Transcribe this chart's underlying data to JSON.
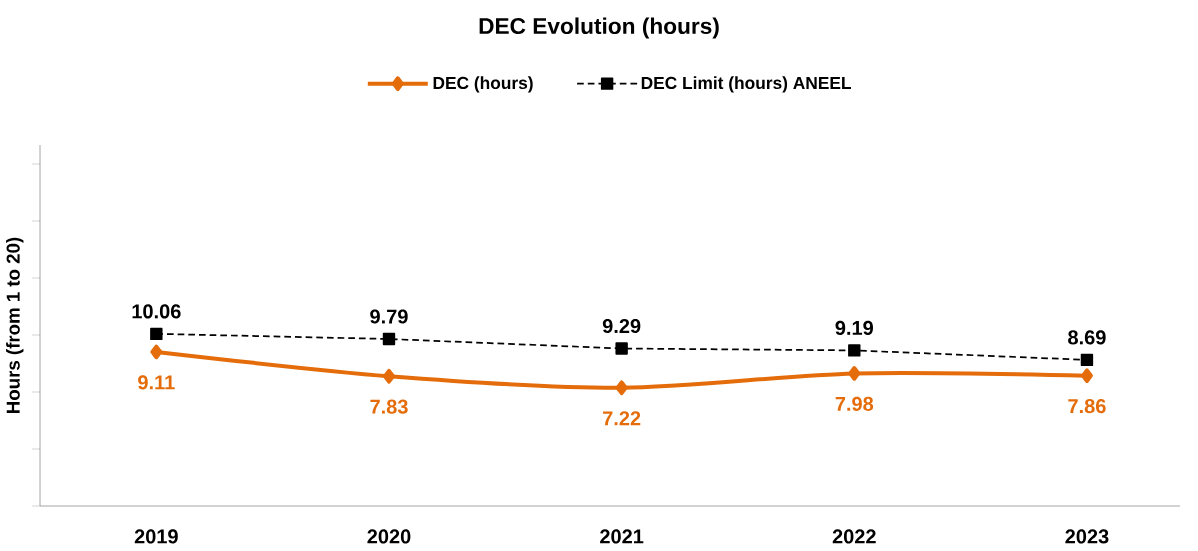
{
  "chart_data": {
    "type": "line",
    "title": "DEC Evolution (hours)",
    "ylabel": "Hours (from 1 to 20)",
    "categories": [
      "2019",
      "2020",
      "2021",
      "2022",
      "2023"
    ],
    "series": [
      {
        "name": "DEC (hours)",
        "color": "#e46c0a",
        "values": [
          9.11,
          7.83,
          7.22,
          7.98,
          7.86
        ],
        "marker": "diamond",
        "line_style": "solid"
      },
      {
        "name": "DEC Limit (hours) ANEEL",
        "color": "#000000",
        "values": [
          10.06,
          9.79,
          9.29,
          9.19,
          8.69
        ],
        "marker": "square",
        "line_style": "dashed"
      }
    ],
    "ylim": [
      1,
      20
    ],
    "yticks": [
      {
        "value": 1,
        "label": null
      },
      {
        "value": 4,
        "label": null
      },
      {
        "value": 7,
        "label": null
      },
      {
        "value": 10,
        "label": null
      },
      {
        "value": 13,
        "label": null
      },
      {
        "value": 16,
        "label": null
      },
      {
        "value": 19,
        "label": null
      }
    ],
    "tick_labels": "x",
    "data_labels": true,
    "legend": "top",
    "grid": false
  }
}
